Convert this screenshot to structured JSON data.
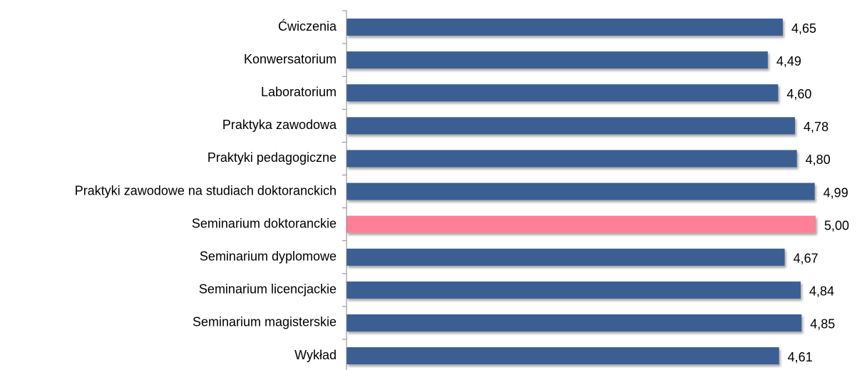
{
  "chart_data": {
    "type": "hbar",
    "categories": [
      "Ćwiczenia",
      "Konwersatorium",
      "Laboratorium",
      "Praktyka zawodowa",
      "Praktyki pedagogiczne",
      "Praktyki zawodowe na studiach doktoranckich",
      "Seminarium doktoranckie",
      "Seminarium dyplomowe",
      "Seminarium licencjackie",
      "Seminarium magisterskie",
      "Wykład"
    ],
    "values": [
      4.65,
      4.49,
      4.6,
      4.78,
      4.8,
      4.99,
      5.0,
      4.67,
      4.84,
      4.85,
      4.61
    ],
    "value_labels": [
      "4,65",
      "4,49",
      "4,60",
      "4,78",
      "4,80",
      "4,99",
      "5,00",
      "4,67",
      "4,84",
      "4,85",
      "4,61"
    ],
    "colors": [
      "#3a5f92",
      "#3a5f92",
      "#3a5f92",
      "#3a5f92",
      "#3a5f92",
      "#3a5f92",
      "#ff7f96",
      "#3a5f92",
      "#3a5f92",
      "#3a5f92",
      "#3a5f92"
    ],
    "xlim": [
      0,
      5
    ]
  }
}
